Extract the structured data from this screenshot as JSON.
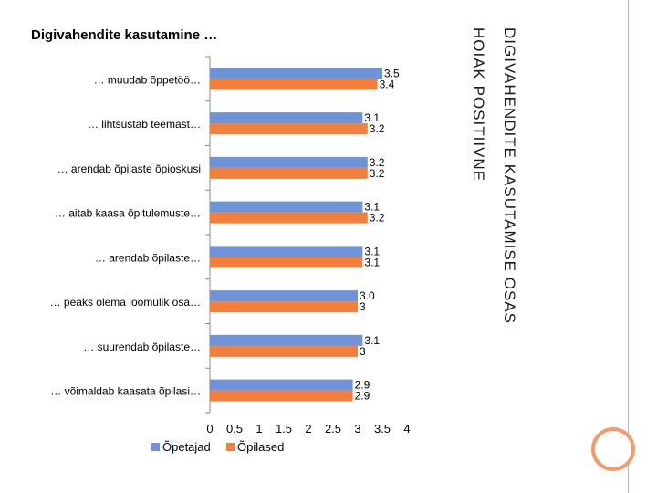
{
  "slide": {
    "title": "Digivahendite kasutamine …",
    "side_title_line1": "Digivahendite kasutamise osas",
    "side_title_line2": "Hoiak positiivne"
  },
  "colors": {
    "series1": "#6f93d8",
    "series2": "#f47f3a",
    "accent": "#f59a6b"
  },
  "chart_data": {
    "type": "bar",
    "orientation": "horizontal",
    "categories": [
      "… muudab õppetöö…",
      "… lihtsustab teemast…",
      "… arendab õpilaste õpioskusi",
      "… aitab kaasa õpitulemuste…",
      "… arendab õpilaste…",
      "… peaks olema loomulik osa…",
      "… suurendab õpilaste…",
      "… võimaldab kaasata õpilasi…"
    ],
    "series": [
      {
        "name": "Õpetajad",
        "values": [
          3.5,
          3.1,
          3.2,
          3.1,
          3.1,
          3.0,
          3.1,
          2.9
        ],
        "labels": [
          "3.5",
          "3.1",
          "3.2",
          "3.1",
          "3.1",
          "3.0",
          "3.1",
          "2.9"
        ]
      },
      {
        "name": "Õpilased",
        "values": [
          3.4,
          3.2,
          3.2,
          3.2,
          3.1,
          3,
          3,
          2.9
        ],
        "labels": [
          "3.4",
          "3.2",
          "3.2",
          "3.2",
          "3.1",
          "3",
          "3",
          "2.9"
        ]
      }
    ],
    "x_ticks": [
      "0",
      "0.5",
      "1",
      "1.5",
      "2",
      "2.5",
      "3",
      "3.5",
      "4"
    ],
    "xlim": [
      0,
      4
    ],
    "grid": false,
    "legend_position": "bottom-left"
  }
}
